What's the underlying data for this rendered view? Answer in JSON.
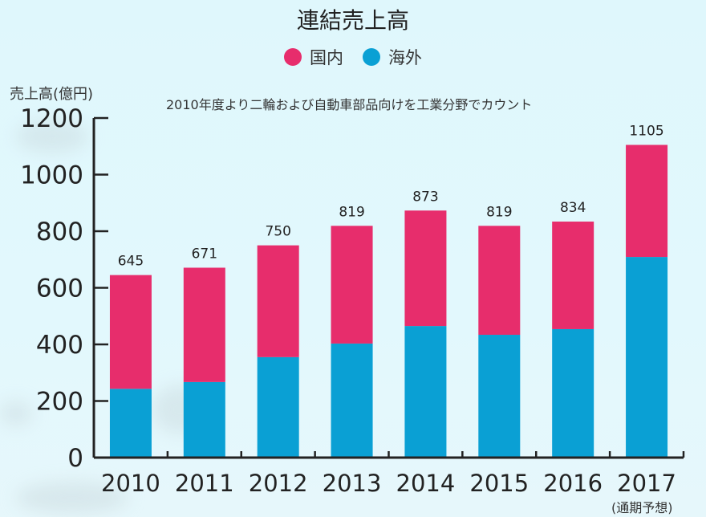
{
  "chart_data": {
    "type": "bar",
    "stacked": true,
    "title": "連結売上高",
    "subtitle": "2010年度より二輪および自動車部品向けを工業分野でカウント",
    "xlabel": "",
    "ylabel": "売上高(億円)",
    "ylim": [
      0,
      1200
    ],
    "yticks": [
      0,
      200,
      400,
      600,
      800,
      1000,
      1200
    ],
    "categories": [
      "2010",
      "2011",
      "2012",
      "2013",
      "2014",
      "2015",
      "2016",
      "2017"
    ],
    "category_note": {
      "index": 7,
      "text": "(通期予想)"
    },
    "totals": [
      645,
      671,
      750,
      819,
      873,
      819,
      834,
      1105
    ],
    "series": [
      {
        "name": "海外",
        "color": "#0aa0d4",
        "values": [
          243,
          267,
          355,
          403,
          465,
          434,
          454,
          709
        ]
      },
      {
        "name": "国内",
        "color": "#e72d6c",
        "values": [
          402,
          404,
          395,
          416,
          408,
          385,
          380,
          396
        ]
      }
    ],
    "legend": {
      "placement": "top-center",
      "entries": [
        {
          "name": "国内",
          "color": "#e72d6c"
        },
        {
          "name": "海外",
          "color": "#0aa0d4"
        }
      ]
    },
    "grid": false
  }
}
